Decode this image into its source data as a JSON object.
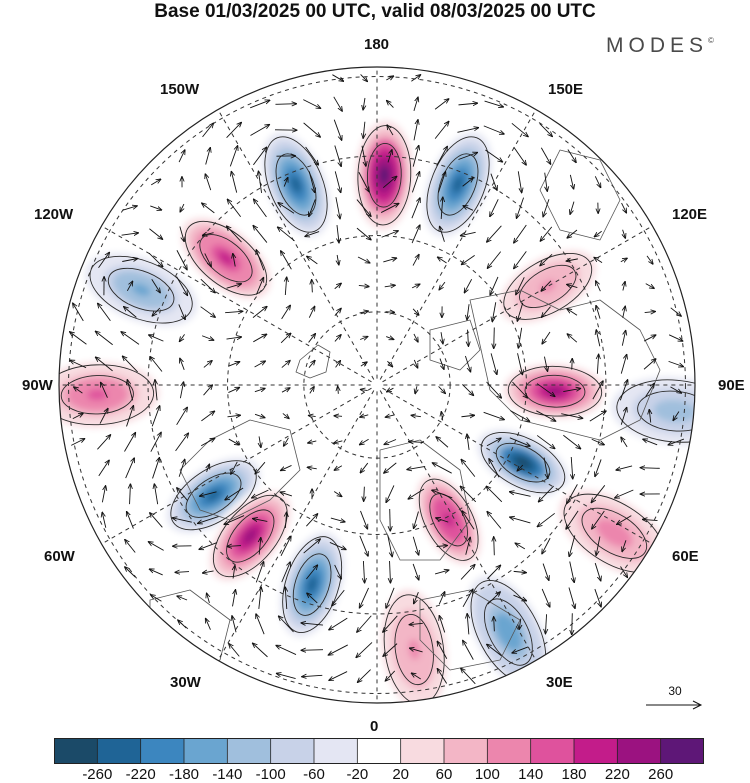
{
  "title": "Base 01/03/2025 00 UTC, valid 08/03/2025 00 UTC",
  "brand": {
    "name": "MODES",
    "mark": "©"
  },
  "longitude_labels": {
    "top": "180",
    "bottom": "0",
    "left": "90W",
    "right": "90E",
    "upper_left_inner": "150W",
    "upper_left_outer": "120W",
    "lower_left_outer": "60W",
    "lower_left_inner": "30W",
    "upper_right_inner": "150E",
    "upper_right_outer": "120E",
    "lower_right_outer": "60E",
    "lower_right_inner": "30E"
  },
  "reference_vector": {
    "value": "30"
  },
  "colorbar": {
    "ticks": [
      "-260",
      "-220",
      "-180",
      "-140",
      "-100",
      "-60",
      "-20",
      "20",
      "60",
      "100",
      "140",
      "180",
      "220",
      "260"
    ],
    "colors": [
      "#1b4a68",
      "#1f6496",
      "#3c86bf",
      "#6aa5d0",
      "#a0bfdd",
      "#c8d2e8",
      "#e4e6f3",
      "#ffffff",
      "#f8dbe0",
      "#f3b6c6",
      "#ec86ad",
      "#df529d",
      "#c31c8a",
      "#9b1280",
      "#5e1777"
    ]
  },
  "map": {
    "projection": "north polar stereographic",
    "anomalies": [
      {
        "lon": 178,
        "r": 0.66,
        "value": 270
      },
      {
        "lon": 158,
        "r": 0.68,
        "value": -230
      },
      {
        "lon": -158,
        "r": 0.68,
        "value": -250
      },
      {
        "lon": -130,
        "r": 0.62,
        "value": 200
      },
      {
        "lon": -112,
        "r": 0.8,
        "value": -150
      },
      {
        "lon": -88,
        "r": 0.88,
        "value": 150
      },
      {
        "lon": -56,
        "r": 0.62,
        "value": -230
      },
      {
        "lon": -40,
        "r": 0.62,
        "value": 250
      },
      {
        "lon": -18,
        "r": 0.66,
        "value": -260
      },
      {
        "lon": 28,
        "r": 0.48,
        "value": 210
      },
      {
        "lon": 62,
        "r": 0.52,
        "value": -270
      },
      {
        "lon": 88,
        "r": 0.56,
        "value": 250
      },
      {
        "lon": 120,
        "r": 0.62,
        "value": 110
      },
      {
        "lon": 85,
        "r": 0.94,
        "value": -140
      },
      {
        "lon": 58,
        "r": 0.88,
        "value": 130
      },
      {
        "lon": 28,
        "r": 0.88,
        "value": -170
      },
      {
        "lon": 8,
        "r": 0.84,
        "value": 110
      }
    ]
  }
}
